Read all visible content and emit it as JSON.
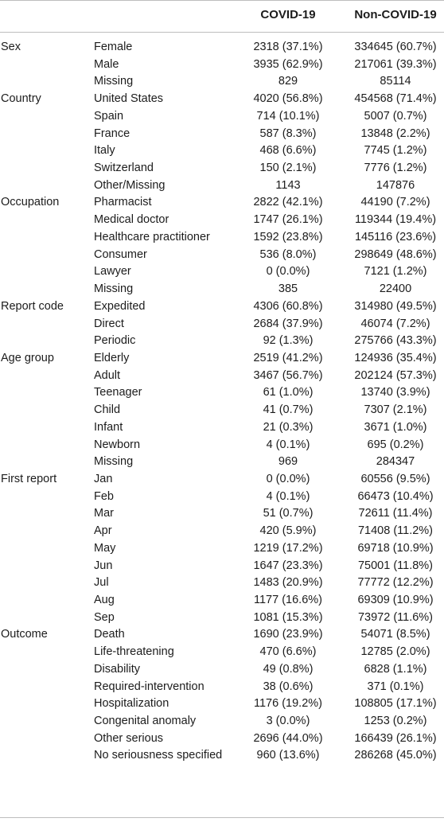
{
  "header": {
    "covid": "COVID-19",
    "noncovid": "Non-COVID-19"
  },
  "rows": [
    {
      "cat": "Sex",
      "sub": "Female",
      "covid": "2318 (37.1%)",
      "noncovid": "334645 (60.7%)"
    },
    {
      "cat": "",
      "sub": "Male",
      "covid": "3935 (62.9%)",
      "noncovid": "217061 (39.3%)"
    },
    {
      "cat": "",
      "sub": "Missing",
      "covid": "829",
      "noncovid": "85114"
    },
    {
      "cat": "Country",
      "sub": "United States",
      "covid": "4020 (56.8%)",
      "noncovid": "454568 (71.4%)"
    },
    {
      "cat": "",
      "sub": "Spain",
      "covid": "714 (10.1%)",
      "noncovid": "5007 (0.7%)"
    },
    {
      "cat": "",
      "sub": "France",
      "covid": "587 (8.3%)",
      "noncovid": "13848 (2.2%)"
    },
    {
      "cat": "",
      "sub": "Italy",
      "covid": "468 (6.6%)",
      "noncovid": "7745 (1.2%)"
    },
    {
      "cat": "",
      "sub": "Switzerland",
      "covid": "150 (2.1%)",
      "noncovid": "7776 (1.2%)"
    },
    {
      "cat": "",
      "sub": "Other/Missing",
      "covid": "1143",
      "noncovid": "147876"
    },
    {
      "cat": "Occupation",
      "sub": "Pharmacist",
      "covid": "2822 (42.1%)",
      "noncovid": "44190 (7.2%)"
    },
    {
      "cat": "",
      "sub": "Medical doctor",
      "covid": "1747 (26.1%)",
      "noncovid": "119344 (19.4%)"
    },
    {
      "cat": "",
      "sub": "Healthcare practitioner",
      "covid": "1592 (23.8%)",
      "noncovid": "145116 (23.6%)"
    },
    {
      "cat": "",
      "sub": "Consumer",
      "covid": "536 (8.0%)",
      "noncovid": "298649 (48.6%)"
    },
    {
      "cat": "",
      "sub": "Lawyer",
      "covid": "0 (0.0%)",
      "noncovid": "7121 (1.2%)"
    },
    {
      "cat": "",
      "sub": "Missing",
      "covid": "385",
      "noncovid": "22400"
    },
    {
      "cat": "Report code",
      "sub": "Expedited",
      "covid": "4306 (60.8%)",
      "noncovid": "314980 (49.5%)"
    },
    {
      "cat": "",
      "sub": "Direct",
      "covid": "2684 (37.9%)",
      "noncovid": "46074 (7.2%)"
    },
    {
      "cat": "",
      "sub": "Periodic",
      "covid": "92 (1.3%)",
      "noncovid": "275766 (43.3%)"
    },
    {
      "cat": "Age group",
      "sub": "Elderly",
      "covid": "2519 (41.2%)",
      "noncovid": "124936 (35.4%)"
    },
    {
      "cat": "",
      "sub": "Adult",
      "covid": "3467 (56.7%)",
      "noncovid": "202124 (57.3%)"
    },
    {
      "cat": "",
      "sub": "Teenager",
      "covid": "61 (1.0%)",
      "noncovid": "13740 (3.9%)"
    },
    {
      "cat": "",
      "sub": "Child",
      "covid": "41 (0.7%)",
      "noncovid": "7307 (2.1%)"
    },
    {
      "cat": "",
      "sub": "Infant",
      "covid": "21 (0.3%)",
      "noncovid": "3671 (1.0%)"
    },
    {
      "cat": "",
      "sub": "Newborn",
      "covid": "4 (0.1%)",
      "noncovid": "695 (0.2%)"
    },
    {
      "cat": "",
      "sub": "Missing",
      "covid": "969",
      "noncovid": "284347"
    },
    {
      "cat": "First report",
      "sub": "Jan",
      "covid": "0 (0.0%)",
      "noncovid": "60556 (9.5%)"
    },
    {
      "cat": "",
      "sub": "Feb",
      "covid": "4 (0.1%)",
      "noncovid": "66473 (10.4%)"
    },
    {
      "cat": "",
      "sub": "Mar",
      "covid": "51 (0.7%)",
      "noncovid": "72611 (11.4%)"
    },
    {
      "cat": "",
      "sub": "Apr",
      "covid": "420 (5.9%)",
      "noncovid": "71408 (11.2%)"
    },
    {
      "cat": "",
      "sub": "May",
      "covid": "1219 (17.2%)",
      "noncovid": "69718 (10.9%)"
    },
    {
      "cat": "",
      "sub": "Jun",
      "covid": "1647 (23.3%)",
      "noncovid": "75001 (11.8%)"
    },
    {
      "cat": "",
      "sub": "Jul",
      "covid": "1483 (20.9%)",
      "noncovid": "77772 (12.2%)"
    },
    {
      "cat": "",
      "sub": "Aug",
      "covid": "1177 (16.6%)",
      "noncovid": "69309 (10.9%)"
    },
    {
      "cat": "",
      "sub": "Sep",
      "covid": "1081 (15.3%)",
      "noncovid": "73972 (11.6%)"
    },
    {
      "cat": "Outcome",
      "sub": "Death",
      "covid": "1690 (23.9%)",
      "noncovid": "54071 (8.5%)"
    },
    {
      "cat": "",
      "sub": "Life-threatening",
      "covid": "470 (6.6%)",
      "noncovid": "12785 (2.0%)"
    },
    {
      "cat": "",
      "sub": "Disability",
      "covid": "49 (0.8%)",
      "noncovid": "6828 (1.1%)"
    },
    {
      "cat": "",
      "sub": "Required-intervention",
      "covid": "38 (0.6%)",
      "noncovid": "371 (0.1%)"
    },
    {
      "cat": "",
      "sub": "Hospitalization",
      "covid": "1176 (19.2%)",
      "noncovid": "108805 (17.1%)"
    },
    {
      "cat": "",
      "sub": "Congenital anomaly",
      "covid": "3 (0.0%)",
      "noncovid": "1253 (0.2%)"
    },
    {
      "cat": "",
      "sub": "Other serious",
      "covid": "2696 (44.0%)",
      "noncovid": "166439 (26.1%)"
    },
    {
      "cat": "",
      "sub": "No seriousness specified",
      "covid": "960 (13.6%)",
      "noncovid": "286268 (45.0%)"
    }
  ]
}
